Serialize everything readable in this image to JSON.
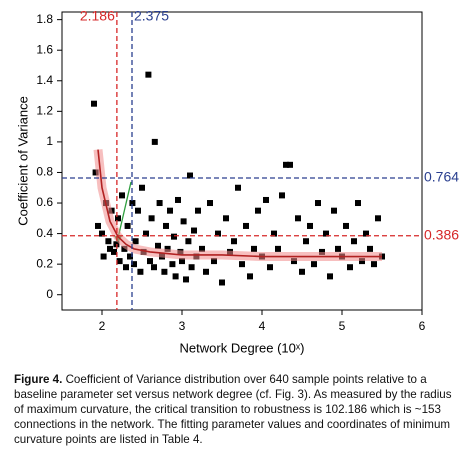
{
  "chart_data": {
    "type": "scatter",
    "xlabel": "Network Degree (10ˣ)",
    "ylabel": "Coefficient of Variance",
    "xlim": [
      1.5,
      6
    ],
    "xticks": [
      2,
      3,
      4,
      5,
      6
    ],
    "ylim": [
      -0.1,
      1.85
    ],
    "yticks": [
      0,
      0.2,
      0.4,
      0.6,
      0.8,
      1,
      1.2,
      1.4,
      1.6,
      1.8
    ],
    "series": [
      {
        "color": "#000000",
        "x": [
          1.9,
          1.92,
          1.95,
          2.0,
          2.02,
          2.05,
          2.08,
          2.1,
          2.12,
          2.15,
          2.18,
          2.2,
          2.22,
          2.25,
          2.28,
          2.3,
          2.32,
          2.35,
          2.38,
          2.4,
          2.42,
          2.45,
          2.48,
          2.5,
          2.52,
          2.55,
          2.58,
          2.6,
          2.62,
          2.65,
          2.66,
          2.7,
          2.72,
          2.75,
          2.78,
          2.8,
          2.82,
          2.85,
          2.88,
          2.9,
          2.92,
          2.95,
          2.98,
          3.0,
          3.02,
          3.05,
          3.08,
          3.1,
          3.12,
          3.15,
          3.18,
          3.2,
          3.25,
          3.3,
          3.35,
          3.4,
          3.45,
          3.5,
          3.55,
          3.6,
          3.65,
          3.7,
          3.75,
          3.8,
          3.85,
          3.9,
          3.95,
          4.0,
          4.05,
          4.1,
          4.15,
          4.2,
          4.25,
          4.3,
          4.35,
          4.4,
          4.45,
          4.5,
          4.55,
          4.6,
          4.65,
          4.7,
          4.75,
          4.8,
          4.85,
          4.9,
          4.95,
          5.0,
          5.05,
          5.1,
          5.15,
          5.2,
          5.25,
          5.3,
          5.35,
          5.4,
          5.45,
          5.5
        ],
        "values": [
          1.25,
          0.8,
          0.45,
          0.4,
          0.25,
          0.6,
          0.35,
          0.3,
          0.55,
          0.28,
          0.33,
          0.5,
          0.22,
          0.65,
          0.3,
          0.18,
          0.45,
          0.25,
          0.6,
          0.2,
          0.35,
          0.55,
          0.15,
          0.7,
          0.28,
          0.4,
          1.44,
          0.22,
          0.5,
          0.18,
          1.0,
          0.32,
          0.6,
          0.25,
          0.15,
          0.45,
          0.3,
          0.55,
          0.2,
          0.38,
          0.12,
          0.62,
          0.28,
          0.22,
          0.48,
          0.1,
          0.35,
          0.78,
          0.18,
          0.42,
          0.25,
          0.55,
          0.3,
          0.15,
          0.6,
          0.22,
          0.4,
          0.08,
          0.5,
          0.28,
          0.35,
          0.7,
          0.2,
          0.45,
          0.12,
          0.3,
          0.55,
          0.25,
          0.62,
          0.18,
          0.4,
          0.3,
          0.65,
          0.85,
          0.85,
          0.22,
          0.5,
          0.15,
          0.35,
          0.45,
          0.2,
          0.6,
          0.28,
          0.4,
          0.12,
          0.55,
          0.3,
          0.25,
          0.45,
          0.18,
          0.35,
          0.6,
          0.22,
          0.4,
          0.3,
          0.2,
          0.5,
          0.25
        ]
      }
    ],
    "fit": {
      "color": "#b22222",
      "x": [
        1.95,
        2.0,
        2.1,
        2.2,
        2.3,
        2.4,
        2.6,
        2.8,
        3.0,
        3.5,
        4.0,
        4.5,
        5.0,
        5.5
      ],
      "values": [
        0.95,
        0.7,
        0.48,
        0.38,
        0.33,
        0.3,
        0.28,
        0.27,
        0.26,
        0.26,
        0.25,
        0.25,
        0.25,
        0.25
      ]
    },
    "reference_lines": [
      {
        "axis": "x",
        "value": 2.186,
        "color": "#d62728"
      },
      {
        "axis": "x",
        "value": 2.375,
        "color": "#2a3f8f"
      },
      {
        "axis": "y",
        "value": 0.764,
        "color": "#2a3f8f"
      },
      {
        "axis": "y",
        "value": 0.386,
        "color": "#d62728"
      }
    ]
  },
  "caption": {
    "label": "Figure 4.",
    "text": "Coefficient of Variance distribution over 640 sample points relative to a baseline parameter set versus network degree (cf. Fig. 3). As measured by the radius of maximum curvature, the critical transition to robustness is 102.186 which is ~153 connections in the network. The fitting parameter values and coordinates of minimum curvature points are listed in Table 4."
  }
}
